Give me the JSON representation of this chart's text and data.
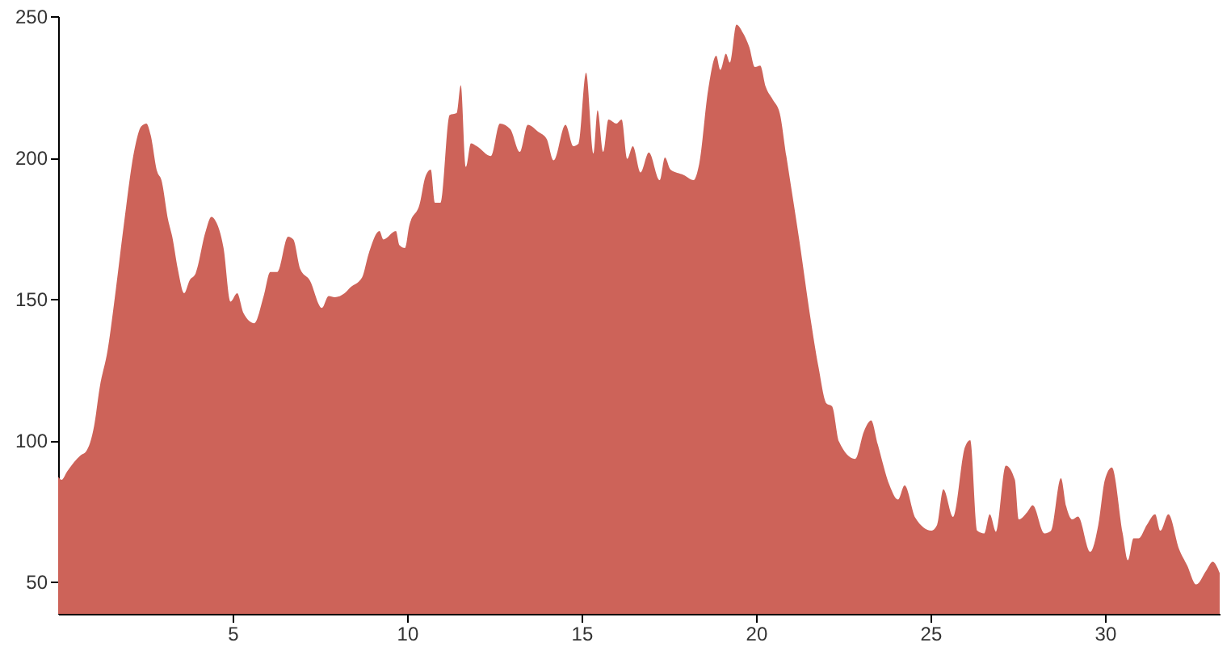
{
  "chart_data": {
    "type": "area",
    "color": "#cd6359",
    "x": [
      0,
      0.1,
      0.26,
      0.65,
      0.8,
      1.03,
      1.19,
      1.42,
      1.65,
      1.88,
      2.19,
      2.38,
      2.53,
      2.65,
      2.84,
      2.96,
      3.15,
      3.27,
      3.43,
      3.61,
      3.77,
      3.94,
      4.23,
      4.39,
      4.51,
      4.74,
      4.94,
      5.13,
      5.31,
      5.62,
      5.89,
      6.08,
      6.28,
      6.59,
      6.74,
      6.94,
      7.21,
      7.56,
      7.75,
      7.93,
      8.21,
      8.37,
      8.71,
      8.9,
      9.21,
      9.32,
      9.68,
      9.78,
      9.94,
      10.06,
      10.37,
      10.52,
      10.68,
      10.8,
      10.96,
      11.22,
      11.42,
      11.54,
      11.69,
      11.83,
      12.0,
      12.4,
      12.66,
      12.96,
      13.23,
      13.46,
      13.77,
      14.0,
      14.2,
      14.54,
      14.77,
      14.92,
      15.13,
      15.34,
      15.46,
      15.62,
      15.77,
      16.0,
      16.15,
      16.31,
      16.47,
      16.69,
      16.93,
      17.24,
      17.39,
      17.55,
      17.93,
      18.21,
      18.37,
      18.63,
      18.86,
      18.98,
      19.14,
      19.25,
      19.44,
      19.63,
      19.81,
      19.97,
      20.12,
      20.28,
      20.48,
      20.68,
      20.87,
      21.25,
      21.56,
      21.79,
      22.02,
      22.18,
      22.38,
      22.84,
      23.1,
      23.3,
      23.49,
      23.83,
      24.07,
      24.26,
      24.57,
      25.03,
      25.19,
      25.37,
      25.65,
      25.99,
      26.14,
      26.34,
      26.54,
      26.7,
      26.88,
      27.16,
      27.42,
      27.53,
      27.78,
      27.93,
      28.27,
      28.46,
      28.74,
      28.89,
      29.07,
      29.23,
      29.58,
      29.81,
      30.0,
      30.2,
      30.51,
      30.66,
      30.82,
      30.97,
      31.2,
      31.44,
      31.59,
      31.82,
      32.13,
      32.36,
      32.62,
      32.9,
      33.09,
      33.29
    ],
    "values": [
      87,
      86,
      89,
      94.7,
      96,
      105,
      118.6,
      132,
      153,
      176,
      203,
      211,
      212,
      208,
      195,
      192,
      178,
      172,
      160.5,
      152,
      156.6,
      159,
      174,
      179,
      177.6,
      168,
      149,
      152,
      145,
      141.4,
      151,
      159.5,
      159.5,
      172,
      171,
      160.5,
      156.6,
      146.8,
      151,
      150.6,
      152,
      154,
      157.6,
      166,
      174,
      171,
      174,
      169,
      168,
      175.7,
      184,
      193,
      195.7,
      184,
      184,
      215,
      215.7,
      225.6,
      196.7,
      205,
      204,
      200.5,
      212,
      210,
      202,
      211.6,
      209,
      206.6,
      199,
      211.6,
      204,
      205,
      230,
      201.4,
      216.7,
      202,
      213.4,
      212,
      213.4,
      199.5,
      204,
      194.7,
      201.8,
      192,
      200,
      195.7,
      193.8,
      192,
      197.6,
      224,
      236,
      231,
      236.7,
      233.6,
      247,
      244,
      239,
      232,
      232.5,
      225,
      220.5,
      215.7,
      200.5,
      170,
      143.3,
      126,
      113,
      112,
      99.5,
      93.4,
      103.3,
      107,
      98.6,
      84,
      79,
      84,
      72.5,
      68,
      70,
      82.7,
      72.9,
      97.6,
      100,
      68,
      67,
      73.8,
      67.6,
      91,
      86,
      72,
      74.7,
      77,
      67,
      68,
      86.6,
      76.7,
      72,
      73,
      60.5,
      70,
      86,
      90.4,
      67,
      57.6,
      65.3,
      65.3,
      70,
      73.8,
      68,
      73.8,
      61.4,
      55.7,
      49,
      53.8,
      57,
      53
    ],
    "xlim": [
      0,
      33.29
    ],
    "ylim": [
      38.6,
      250
    ],
    "xticks": [
      5,
      10,
      15,
      20,
      25,
      30
    ],
    "yticks": [
      50,
      100,
      150,
      200,
      250
    ]
  }
}
